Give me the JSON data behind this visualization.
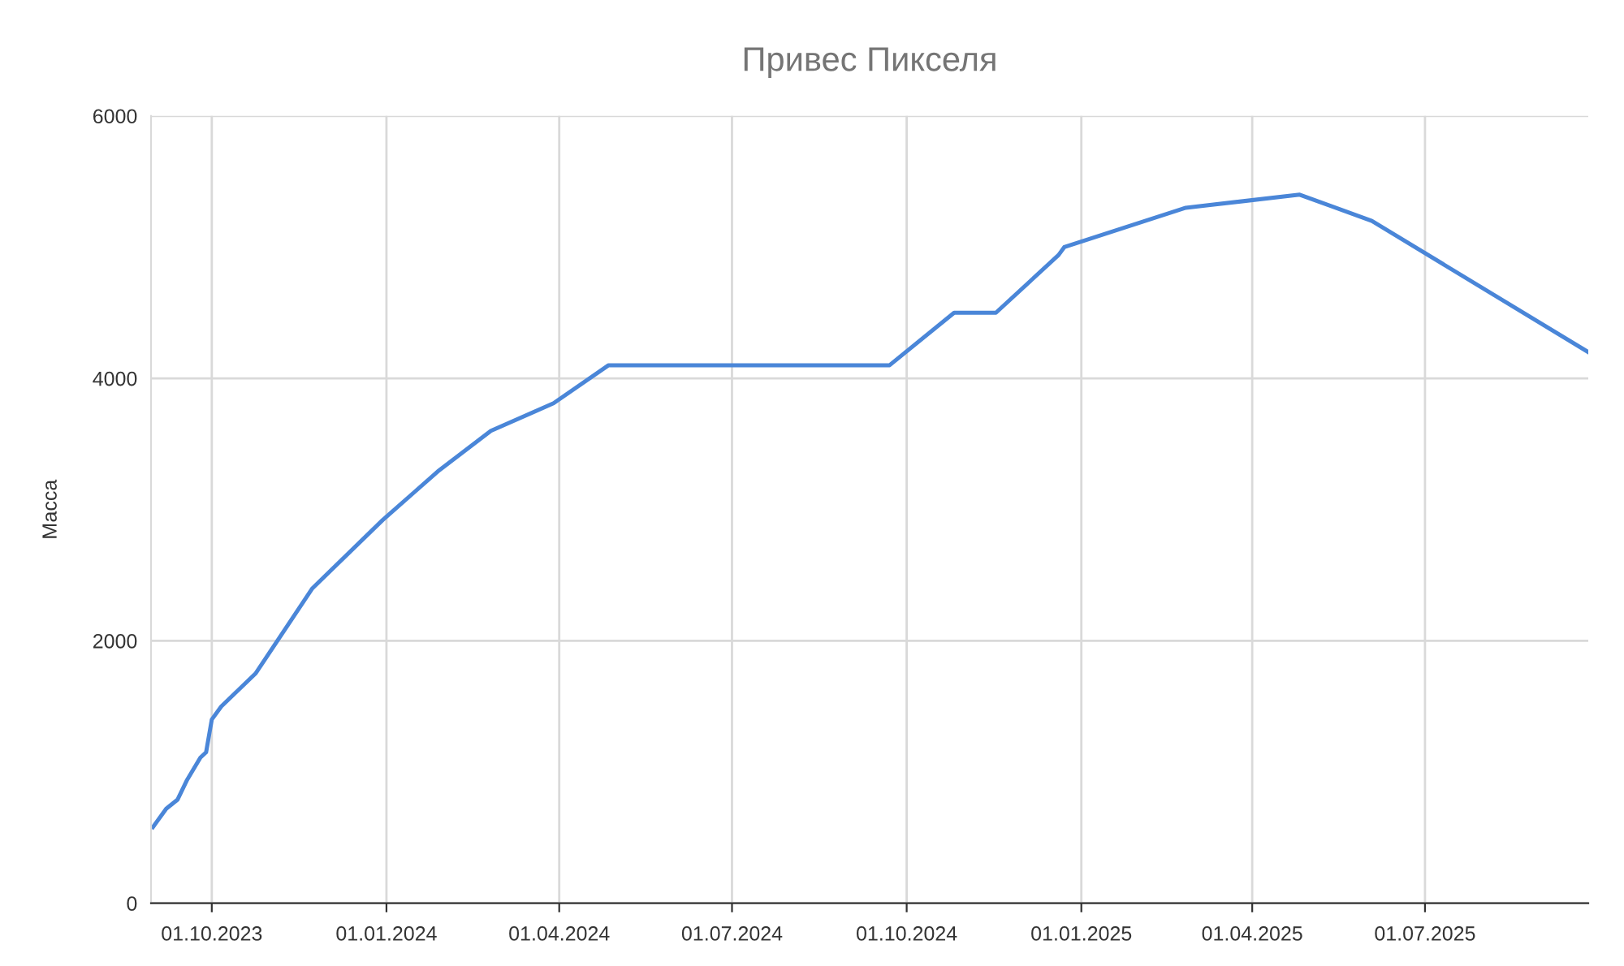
{
  "chart_data": {
    "type": "line",
    "title": "Привес Пикселя",
    "ylabel": "Масса",
    "x": [
      "2023-08-31",
      "2023-09-07",
      "2023-09-13",
      "2023-09-18",
      "2023-09-25",
      "2023-09-28",
      "2023-10-01",
      "2023-10-06",
      "2023-10-24",
      "2023-11-23",
      "2023-12-30",
      "2024-01-28",
      "2024-02-25",
      "2024-03-29",
      "2024-04-27",
      "2024-09-22",
      "2024-10-26",
      "2024-11-17",
      "2024-12-20",
      "2024-12-23",
      "2025-02-25",
      "2025-04-26",
      "2025-06-03",
      "2025-09-25"
    ],
    "series": [
      {
        "color": "#4a86d8",
        "values": [
          580,
          720,
          790,
          940,
          1110,
          1150,
          1400,
          1500,
          1750,
          2400,
          2920,
          3290,
          3600,
          3810,
          4100,
          4100,
          4500,
          4500,
          4940,
          5000,
          5300,
          5400,
          5200,
          4200
        ]
      }
    ],
    "xlim": [
      "2023-08-30",
      "2025-09-25"
    ],
    "xticks": [
      {
        "value": "2023-10-01",
        "label": "01.10.2023"
      },
      {
        "value": "2024-01-01",
        "label": "01.01.2024"
      },
      {
        "value": "2024-04-01",
        "label": "01.04.2024"
      },
      {
        "value": "2024-07-01",
        "label": "01.07.2024"
      },
      {
        "value": "2024-10-01",
        "label": "01.10.2024"
      },
      {
        "value": "2025-01-01",
        "label": "01.01.2025"
      },
      {
        "value": "2025-04-01",
        "label": "01.04.2025"
      },
      {
        "value": "2025-07-01",
        "label": "01.07.2025"
      }
    ],
    "ylim": [
      0,
      6000
    ],
    "yticks": [
      0,
      2000,
      4000,
      6000
    ],
    "grid": true,
    "marker": "none",
    "line_style": "solid"
  }
}
